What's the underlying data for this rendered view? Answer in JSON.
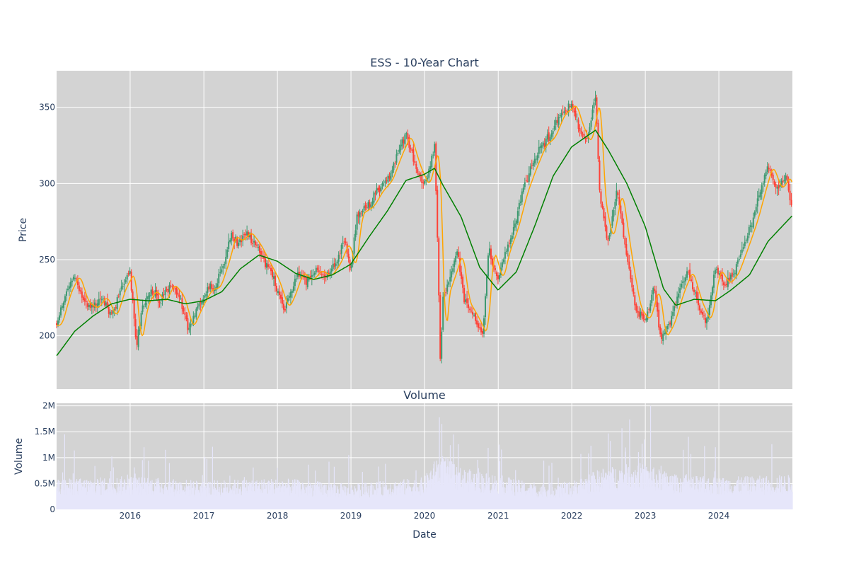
{
  "chart_data": [
    {
      "type": "candlestick",
      "title": "ESS - 10-Year Chart",
      "ylabel": "Price",
      "ylim": [
        165,
        374
      ],
      "yticks": [
        200,
        250,
        300,
        350
      ],
      "grid": true,
      "colors": {
        "plot_bg": "#d3d3d3",
        "up": "#3d9970",
        "down": "#ff4136",
        "ma_short": "#ffa500",
        "ma_long": "#008000",
        "grid": "#ffffff"
      },
      "x_range": [
        "2015-01-01",
        "2024-12-31"
      ],
      "price_path": [
        [
          "2015-01-02",
          207
        ],
        [
          "2015-02-15",
          228
        ],
        [
          "2015-04-01",
          240
        ],
        [
          "2015-05-15",
          222
        ],
        [
          "2015-07-01",
          218
        ],
        [
          "2015-08-15",
          226
        ],
        [
          "2015-10-01",
          212
        ],
        [
          "2015-11-15",
          231
        ],
        [
          "2015-12-31",
          242
        ],
        [
          "2016-02-01",
          192
        ],
        [
          "2016-03-01",
          219
        ],
        [
          "2016-04-15",
          230
        ],
        [
          "2016-06-01",
          222
        ],
        [
          "2016-07-15",
          234
        ],
        [
          "2016-09-01",
          226
        ],
        [
          "2016-10-15",
          205
        ],
        [
          "2016-12-01",
          219
        ],
        [
          "2017-01-15",
          230
        ],
        [
          "2017-03-01",
          232
        ],
        [
          "2017-04-15",
          250
        ],
        [
          "2017-05-15",
          266
        ],
        [
          "2017-06-15",
          262
        ],
        [
          "2017-08-01",
          268
        ],
        [
          "2017-09-15",
          260
        ],
        [
          "2017-11-01",
          248
        ],
        [
          "2017-12-15",
          237
        ],
        [
          "2018-02-01",
          218
        ],
        [
          "2018-03-01",
          225
        ],
        [
          "2018-04-15",
          242
        ],
        [
          "2018-06-01",
          236
        ],
        [
          "2018-07-15",
          243
        ],
        [
          "2018-09-01",
          239
        ],
        [
          "2018-10-15",
          247
        ],
        [
          "2018-12-01",
          262
        ],
        [
          "2018-12-31",
          242
        ],
        [
          "2019-02-01",
          280
        ],
        [
          "2019-04-01",
          285
        ],
        [
          "2019-05-15",
          295
        ],
        [
          "2019-07-01",
          302
        ],
        [
          "2019-08-15",
          318
        ],
        [
          "2019-10-01",
          332
        ],
        [
          "2019-11-15",
          312
        ],
        [
          "2019-12-31",
          298
        ],
        [
          "2020-02-21",
          325
        ],
        [
          "2020-03-10",
          240
        ],
        [
          "2020-03-20",
          180
        ],
        [
          "2020-04-01",
          225
        ],
        [
          "2020-05-15",
          242
        ],
        [
          "2020-06-15",
          255
        ],
        [
          "2020-07-15",
          223
        ],
        [
          "2020-09-01",
          212
        ],
        [
          "2020-10-15",
          200
        ],
        [
          "2020-11-15",
          258
        ],
        [
          "2020-12-31",
          236
        ],
        [
          "2021-02-01",
          255
        ],
        [
          "2021-03-15",
          270
        ],
        [
          "2021-05-01",
          294
        ],
        [
          "2021-06-15",
          310
        ],
        [
          "2021-08-01",
          325
        ],
        [
          "2021-09-15",
          330
        ],
        [
          "2021-11-01",
          345
        ],
        [
          "2021-12-31",
          352
        ],
        [
          "2022-02-01",
          338
        ],
        [
          "2022-03-15",
          326
        ],
        [
          "2022-04-29",
          358
        ],
        [
          "2022-05-20",
          290
        ],
        [
          "2022-07-01",
          262
        ],
        [
          "2022-08-15",
          296
        ],
        [
          "2022-10-01",
          252
        ],
        [
          "2022-11-15",
          218
        ],
        [
          "2022-12-31",
          210
        ],
        [
          "2023-02-15",
          232
        ],
        [
          "2023-03-20",
          198
        ],
        [
          "2023-05-01",
          208
        ],
        [
          "2023-06-15",
          228
        ],
        [
          "2023-07-31",
          243
        ],
        [
          "2023-09-15",
          222
        ],
        [
          "2023-10-31",
          209
        ],
        [
          "2023-12-15",
          244
        ],
        [
          "2024-02-01",
          234
        ],
        [
          "2024-03-15",
          241
        ],
        [
          "2024-05-01",
          258
        ],
        [
          "2024-06-15",
          275
        ],
        [
          "2024-08-01",
          298
        ],
        [
          "2024-09-01",
          312
        ],
        [
          "2024-10-15",
          296
        ],
        [
          "2024-12-01",
          305
        ],
        [
          "2024-12-31",
          281
        ]
      ],
      "ma_long_path": [
        [
          "2015-01-02",
          187
        ],
        [
          "2015-04-01",
          203
        ],
        [
          "2015-07-01",
          213
        ],
        [
          "2015-10-01",
          221
        ],
        [
          "2015-12-31",
          224
        ],
        [
          "2016-04-01",
          223
        ],
        [
          "2016-07-01",
          224
        ],
        [
          "2016-10-01",
          221
        ],
        [
          "2016-12-31",
          223
        ],
        [
          "2017-04-01",
          229
        ],
        [
          "2017-07-01",
          244
        ],
        [
          "2017-10-01",
          253
        ],
        [
          "2017-12-31",
          249
        ],
        [
          "2018-04-01",
          241
        ],
        [
          "2018-07-01",
          237
        ],
        [
          "2018-10-01",
          240
        ],
        [
          "2018-12-31",
          247
        ],
        [
          "2019-04-01",
          265
        ],
        [
          "2019-07-01",
          282
        ],
        [
          "2019-10-01",
          302
        ],
        [
          "2019-12-31",
          306
        ],
        [
          "2020-02-20",
          310
        ],
        [
          "2020-04-01",
          299
        ],
        [
          "2020-07-01",
          278
        ],
        [
          "2020-10-01",
          245
        ],
        [
          "2020-12-31",
          230
        ],
        [
          "2021-04-01",
          242
        ],
        [
          "2021-07-01",
          272
        ],
        [
          "2021-10-01",
          305
        ],
        [
          "2021-12-31",
          324
        ],
        [
          "2022-04-29",
          335
        ],
        [
          "2022-07-01",
          322
        ],
        [
          "2022-10-01",
          300
        ],
        [
          "2022-12-31",
          272
        ],
        [
          "2023-04-01",
          231
        ],
        [
          "2023-06-01",
          220
        ],
        [
          "2023-09-01",
          224
        ],
        [
          "2023-12-15",
          223
        ],
        [
          "2024-03-01",
          230
        ],
        [
          "2024-06-01",
          240
        ],
        [
          "2024-09-01",
          262
        ],
        [
          "2024-12-31",
          279
        ]
      ],
      "ma_short_lag_days": 28
    },
    {
      "type": "bar",
      "title": "Volume",
      "ylabel": "Volume",
      "xlabel": "Date",
      "ylim": [
        0,
        2050000
      ],
      "yticks": [
        {
          "value": 0,
          "label": "0"
        },
        {
          "value": 500000,
          "label": "0.5M"
        },
        {
          "value": 1000000,
          "label": "1M"
        },
        {
          "value": 1500000,
          "label": "1.5M"
        },
        {
          "value": 2000000,
          "label": "2M"
        }
      ],
      "xticks": [
        "2016",
        "2017",
        "2018",
        "2019",
        "2020",
        "2021",
        "2022",
        "2023",
        "2024"
      ],
      "grid": true,
      "colors": {
        "plot_bg": "#d3d3d3",
        "bar": "#e6e6fa",
        "grid": "#ffffff"
      },
      "volume_baseline": [
        [
          "2015-01-02",
          450000
        ],
        [
          "2016-01-01",
          500000
        ],
        [
          "2017-01-01",
          430000
        ],
        [
          "2018-01-01",
          470000
        ],
        [
          "2019-01-01",
          380000
        ],
        [
          "2019-12-31",
          480000
        ],
        [
          "2020-03-15",
          850000
        ],
        [
          "2020-07-01",
          620000
        ],
        [
          "2021-01-01",
          520000
        ],
        [
          "2021-07-01",
          380000
        ],
        [
          "2022-01-01",
          420000
        ],
        [
          "2022-06-01",
          620000
        ],
        [
          "2022-12-01",
          700000
        ],
        [
          "2023-06-01",
          520000
        ],
        [
          "2024-01-01",
          480000
        ],
        [
          "2024-12-31",
          520000
        ]
      ],
      "volume_spikes": [
        [
          "2015-02-10",
          1450000
        ],
        [
          "2015-12-18",
          1100000
        ],
        [
          "2016-03-10",
          1200000
        ],
        [
          "2016-06-24",
          1150000
        ],
        [
          "2017-12-15",
          1000000
        ],
        [
          "2018-12-21",
          1050000
        ],
        [
          "2019-06-21",
          880000
        ],
        [
          "2020-03-20",
          1750000
        ],
        [
          "2020-03-27",
          1650000
        ],
        [
          "2020-05-29",
          1500000
        ],
        [
          "2020-09-18",
          1200000
        ],
        [
          "2020-11-09",
          1280000
        ],
        [
          "2022-06-24",
          1050000
        ],
        [
          "2022-12-16",
          1270000
        ],
        [
          "2023-01-27",
          2000000
        ],
        [
          "2023-03-17",
          1290000
        ],
        [
          "2023-07-27",
          1900000
        ],
        [
          "2023-12-15",
          1200000
        ],
        [
          "2024-03-15",
          1020000
        ],
        [
          "2024-06-21",
          1420000
        ],
        [
          "2024-09-20",
          1260000
        ],
        [
          "2024-12-20",
          1420000
        ]
      ]
    }
  ]
}
